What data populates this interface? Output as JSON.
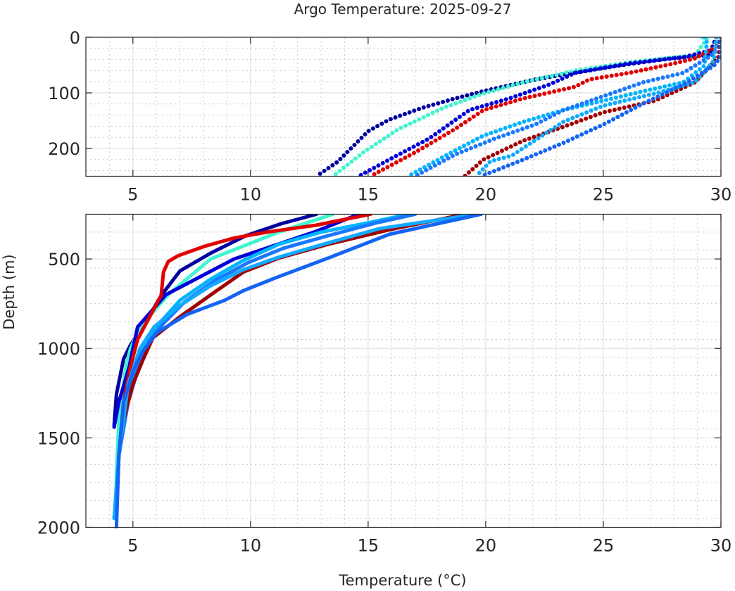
{
  "chart_data": {
    "type": "scatter",
    "title": "Argo Temperature: 2025-09-27",
    "xlabel": "Temperature (°C)",
    "ylabel": "Depth (m)",
    "panels": [
      {
        "name": "upper",
        "xlim": [
          3,
          30
        ],
        "ylim": [
          0,
          250
        ],
        "xticks": [
          "5",
          "10",
          "15",
          "20",
          "25",
          "30"
        ],
        "xtick_values": [
          5,
          10,
          15,
          20,
          25,
          30
        ],
        "yticks": [
          "0",
          "100",
          "200"
        ],
        "ytick_values": [
          0,
          100,
          200
        ],
        "y_minor_step": 20,
        "grid": true
      },
      {
        "name": "lower",
        "xlim": [
          3,
          30
        ],
        "ylim": [
          250,
          2000
        ],
        "xticks": [
          "5",
          "10",
          "15",
          "20",
          "25",
          "30"
        ],
        "xtick_values": [
          5,
          10,
          15,
          20,
          25,
          30
        ],
        "yticks": [
          "500",
          "1000",
          "1500",
          "2000"
        ],
        "ytick_values": [
          500,
          1000,
          1500,
          2000
        ],
        "y_minor_step": 100,
        "grid": true
      }
    ],
    "series": [
      {
        "name": "profile-1",
        "color": "#00009e",
        "points": [
          [
            29.8,
            0
          ],
          [
            29.5,
            32
          ],
          [
            27.8,
            38
          ],
          [
            25.0,
            55
          ],
          [
            22.1,
            76
          ],
          [
            19.9,
            97
          ],
          [
            18.7,
            110
          ],
          [
            17.3,
            127
          ],
          [
            15.9,
            148
          ],
          [
            15.0,
            169
          ],
          [
            13.7,
            224
          ],
          [
            12.8,
            250
          ],
          [
            11.3,
            303
          ],
          [
            9.8,
            370
          ],
          [
            8.3,
            468
          ],
          [
            7.0,
            567
          ],
          [
            6.2,
            705
          ],
          [
            5.5,
            862
          ],
          [
            4.9,
            980
          ],
          [
            4.6,
            1059
          ],
          [
            4.3,
            1256
          ],
          [
            4.2,
            1430
          ]
        ]
      },
      {
        "name": "profile-2",
        "color": "#40f5d0",
        "points": [
          [
            29.2,
            0
          ],
          [
            29.4,
            3
          ],
          [
            28.9,
            32
          ],
          [
            26.1,
            45
          ],
          [
            23.8,
            60
          ],
          [
            21.6,
            81
          ],
          [
            19.9,
            101
          ],
          [
            18.2,
            127
          ],
          [
            16.3,
            165
          ],
          [
            14.8,
            207
          ],
          [
            13.5,
            250
          ],
          [
            11.2,
            350
          ],
          [
            8.3,
            500
          ],
          [
            6.5,
            700
          ],
          [
            5.3,
            880
          ],
          [
            4.9,
            1000
          ],
          [
            4.7,
            1100
          ],
          [
            4.4,
            1400
          ],
          [
            4.3,
            1700
          ],
          [
            4.25,
            1950
          ]
        ]
      },
      {
        "name": "profile-3",
        "color": "#0000d8",
        "points": [
          [
            30,
            0
          ],
          [
            29.8,
            21
          ],
          [
            28.4,
            36
          ],
          [
            26.1,
            47
          ],
          [
            23.8,
            64
          ],
          [
            22.7,
            85
          ],
          [
            21.0,
            110
          ],
          [
            19.3,
            131
          ],
          [
            17.6,
            182
          ],
          [
            15.9,
            220
          ],
          [
            14.6,
            250
          ],
          [
            12.7,
            350
          ],
          [
            9.3,
            500
          ],
          [
            6.4,
            700
          ],
          [
            5.2,
            880
          ],
          [
            5.0,
            1000
          ],
          [
            4.85,
            1100
          ],
          [
            4.4,
            1300
          ],
          [
            4.2,
            1440
          ]
        ]
      },
      {
        "name": "profile-4",
        "color": "#e00000",
        "points": [
          [
            30,
            0
          ],
          [
            29.8,
            17
          ],
          [
            28.9,
            38
          ],
          [
            27.8,
            49
          ],
          [
            26.1,
            64
          ],
          [
            24.4,
            76
          ],
          [
            23.8,
            89
          ],
          [
            21.6,
            110
          ],
          [
            19.9,
            131
          ],
          [
            18.7,
            165
          ],
          [
            17.0,
            207
          ],
          [
            15.1,
            250
          ],
          [
            12.8,
            311
          ],
          [
            10.7,
            350
          ],
          [
            9.3,
            383
          ],
          [
            8.05,
            429
          ],
          [
            6.9,
            483
          ],
          [
            6.5,
            515
          ],
          [
            6.3,
            573
          ],
          [
            6.2,
            704
          ],
          [
            5.6,
            850
          ],
          [
            5.2,
            950
          ],
          [
            4.9,
            1100
          ],
          [
            4.6,
            1300
          ],
          [
            4.4,
            1600
          ],
          [
            4.3,
            1900
          ]
        ]
      },
      {
        "name": "profile-5",
        "color": "#00b4ff",
        "points": [
          [
            29.3,
            0
          ],
          [
            29.4,
            9
          ],
          [
            29.3,
            51
          ],
          [
            28.4,
            81
          ],
          [
            26.7,
            97
          ],
          [
            25.0,
            114
          ],
          [
            23.3,
            131
          ],
          [
            21.6,
            152
          ],
          [
            19.9,
            177
          ],
          [
            18.2,
            215
          ],
          [
            16.7,
            250
          ],
          [
            15.0,
            298
          ],
          [
            13.0,
            350
          ],
          [
            11.2,
            418
          ],
          [
            9.7,
            508
          ],
          [
            8.3,
            613
          ],
          [
            7.0,
            731
          ],
          [
            6.2,
            849
          ],
          [
            5.5,
            967
          ],
          [
            5.2,
            1098
          ],
          [
            4.7,
            1300
          ],
          [
            4.4,
            1600
          ],
          [
            4.2,
            1950
          ]
        ]
      },
      {
        "name": "profile-6",
        "color": "#1a78ff",
        "points": [
          [
            30,
            0
          ],
          [
            29.7,
            30
          ],
          [
            28.4,
            64
          ],
          [
            26.7,
            81
          ],
          [
            25.0,
            106
          ],
          [
            23.3,
            131
          ],
          [
            22.1,
            157
          ],
          [
            20.4,
            182
          ],
          [
            18.7,
            211
          ],
          [
            17.0,
            250
          ],
          [
            15.3,
            300
          ],
          [
            13.3,
            370
          ],
          [
            11.4,
            440
          ],
          [
            9.9,
            520
          ],
          [
            8.5,
            620
          ],
          [
            7.2,
            740
          ],
          [
            6.3,
            860
          ],
          [
            5.7,
            960
          ],
          [
            5.3,
            1080
          ],
          [
            4.8,
            1300
          ],
          [
            4.4,
            1600
          ],
          [
            4.3,
            1900
          ]
        ]
      },
      {
        "name": "profile-7",
        "color": "#a00000",
        "points": [
          [
            30,
            0
          ],
          [
            29.9,
            35
          ],
          [
            28.9,
            81
          ],
          [
            27.2,
            114
          ],
          [
            25.0,
            135
          ],
          [
            23.3,
            161
          ],
          [
            21.6,
            186
          ],
          [
            19.9,
            220
          ],
          [
            19.1,
            250
          ],
          [
            15.9,
            337
          ],
          [
            13.3,
            418
          ],
          [
            11.2,
            495
          ],
          [
            9.7,
            573
          ],
          [
            8.4,
            692
          ],
          [
            7.0,
            823
          ],
          [
            5.85,
            941
          ],
          [
            5.4,
            1071
          ],
          [
            5.0,
            1200
          ],
          [
            4.6,
            1400
          ],
          [
            4.4,
            1600
          ],
          [
            4.3,
            1900
          ]
        ]
      },
      {
        "name": "profile-8",
        "color": "#10aaff",
        "points": [
          [
            29.8,
            0
          ],
          [
            29.7,
            42
          ],
          [
            28.9,
            81
          ],
          [
            27.2,
            101
          ],
          [
            25.0,
            123
          ],
          [
            23.3,
            152
          ],
          [
            21.1,
            213
          ],
          [
            20.2,
            223
          ],
          [
            19.6,
            250
          ],
          [
            15.5,
            330
          ],
          [
            13.3,
            410
          ],
          [
            11.2,
            490
          ],
          [
            9.7,
            560
          ],
          [
            8.3,
            650
          ],
          [
            7.0,
            760
          ],
          [
            5.9,
            880
          ],
          [
            5.3,
            1000
          ],
          [
            4.8,
            1200
          ],
          [
            4.4,
            1600
          ],
          [
            4.2,
            1950
          ]
        ]
      },
      {
        "name": "profile-9",
        "color": "#1464f4",
        "points": [
          [
            30,
            0
          ],
          [
            30,
            35
          ],
          [
            29.7,
            51
          ],
          [
            28.4,
            85
          ],
          [
            26.7,
            119
          ],
          [
            25.0,
            157
          ],
          [
            23.3,
            190
          ],
          [
            21.6,
            220
          ],
          [
            19.8,
            250
          ],
          [
            15.9,
            362
          ],
          [
            13.3,
            495
          ],
          [
            11.2,
            599
          ],
          [
            9.7,
            677
          ],
          [
            8.9,
            731
          ],
          [
            7.3,
            810
          ],
          [
            6.0,
            913
          ],
          [
            5.4,
            1020
          ],
          [
            5.06,
            1110
          ],
          [
            4.6,
            1300
          ],
          [
            4.4,
            1600
          ],
          [
            4.3,
            2000
          ]
        ]
      }
    ]
  }
}
